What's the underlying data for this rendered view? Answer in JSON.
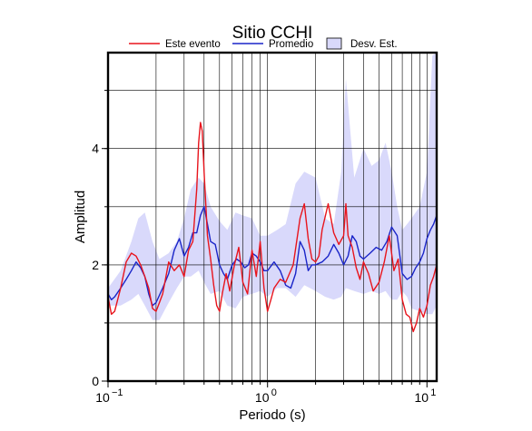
{
  "chart_data": {
    "type": "line",
    "title": "Sitio CCHI",
    "xlabel": "Periodo (s)",
    "ylabel": "Amplitud",
    "xscale": "log",
    "xlim": [
      0.1,
      11.5
    ],
    "ylim": [
      0,
      5.65
    ],
    "xticks": [
      {
        "value": 0.1,
        "base": "10",
        "exp": "−1"
      },
      {
        "value": 1,
        "base": "10",
        "exp": "0"
      },
      {
        "value": 10,
        "base": "10",
        "exp": "1"
      }
    ],
    "yticks": [
      0,
      2,
      4
    ],
    "grid": true,
    "legend_position": "top",
    "legend": [
      {
        "label": "Este evento",
        "kind": "line",
        "color": "#e8141c"
      },
      {
        "label": "Promedio",
        "kind": "line",
        "color": "#1a25c8"
      },
      {
        "label": "Desv. Est.",
        "kind": "band",
        "color": "#d9d9fb"
      }
    ],
    "band": {
      "name": "Desv. Est.",
      "color": "#d9d9fb",
      "x": [
        0.1,
        0.12,
        0.14,
        0.155,
        0.17,
        0.19,
        0.21,
        0.24,
        0.27,
        0.3,
        0.33,
        0.37,
        0.4,
        0.44,
        0.5,
        0.56,
        0.63,
        0.7,
        0.8,
        0.9,
        1.0,
        1.15,
        1.3,
        1.5,
        1.7,
        2.0,
        2.3,
        2.6,
        2.9,
        3.1,
        3.5,
        4.0,
        4.5,
        5.0,
        5.5,
        6.0,
        6.5,
        7.0,
        7.5,
        8.0,
        9.0,
        10.0,
        10.8,
        11.5
      ],
      "upper": [
        1.6,
        1.9,
        2.4,
        2.8,
        2.9,
        2.4,
        2.1,
        2.2,
        2.4,
        2.8,
        3.3,
        3.5,
        3.4,
        3.0,
        2.75,
        2.6,
        2.9,
        2.85,
        2.8,
        2.5,
        2.5,
        2.6,
        2.7,
        3.4,
        3.6,
        3.5,
        2.8,
        2.7,
        3.6,
        5.2,
        3.5,
        4.0,
        3.7,
        3.8,
        4.1,
        3.6,
        3.0,
        2.6,
        2.7,
        2.8,
        3.0,
        3.6,
        5.6,
        5.65
      ],
      "lower": [
        1.3,
        1.3,
        1.4,
        1.5,
        1.3,
        1.05,
        1.05,
        1.35,
        1.6,
        1.8,
        1.8,
        1.9,
        1.7,
        1.5,
        1.55,
        1.3,
        1.25,
        1.45,
        1.5,
        1.55,
        1.45,
        1.6,
        1.6,
        1.45,
        1.65,
        1.55,
        1.45,
        1.4,
        1.45,
        1.6,
        1.55,
        1.5,
        1.55,
        1.5,
        1.55,
        1.4,
        1.4,
        1.55,
        1.45,
        1.25,
        1.2,
        1.15,
        1.15,
        1.3
      ]
    },
    "series": [
      {
        "name": "Este evento",
        "color": "#e8141c",
        "x": [
          0.1,
          0.105,
          0.11,
          0.12,
          0.13,
          0.14,
          0.15,
          0.16,
          0.17,
          0.18,
          0.19,
          0.2,
          0.21,
          0.22,
          0.24,
          0.26,
          0.28,
          0.3,
          0.32,
          0.34,
          0.36,
          0.37,
          0.38,
          0.39,
          0.4,
          0.42,
          0.44,
          0.46,
          0.48,
          0.5,
          0.52,
          0.55,
          0.58,
          0.62,
          0.66,
          0.7,
          0.75,
          0.8,
          0.85,
          0.9,
          0.95,
          1.0,
          1.05,
          1.1,
          1.2,
          1.3,
          1.45,
          1.6,
          1.7,
          1.8,
          1.9,
          2.0,
          2.1,
          2.2,
          2.4,
          2.6,
          2.8,
          3.0,
          3.1,
          3.2,
          3.4,
          3.6,
          3.8,
          4.0,
          4.3,
          4.6,
          5.0,
          5.4,
          5.8,
          6.2,
          6.6,
          7.0,
          7.4,
          7.8,
          8.2,
          8.6,
          9.0,
          9.5,
          10.0,
          10.5,
          11.0,
          11.5
        ],
        "y": [
          1.45,
          1.15,
          1.2,
          1.6,
          2.05,
          2.2,
          2.15,
          2.0,
          1.8,
          1.6,
          1.25,
          1.2,
          1.35,
          1.5,
          2.05,
          1.9,
          2.0,
          1.8,
          2.25,
          2.4,
          3.3,
          4.1,
          4.45,
          4.3,
          3.6,
          2.5,
          2.1,
          1.65,
          1.3,
          1.2,
          1.5,
          1.85,
          1.55,
          2.0,
          2.3,
          1.7,
          1.5,
          2.25,
          1.8,
          2.4,
          1.6,
          1.2,
          1.4,
          1.6,
          1.75,
          1.7,
          2.0,
          2.8,
          3.05,
          2.45,
          2.1,
          2.05,
          2.15,
          2.6,
          3.05,
          2.55,
          2.35,
          2.5,
          3.05,
          2.5,
          2.3,
          1.95,
          1.75,
          2.05,
          1.85,
          1.55,
          1.7,
          2.05,
          2.5,
          1.9,
          2.1,
          1.4,
          1.15,
          1.1,
          0.85,
          1.0,
          1.25,
          1.1,
          1.3,
          1.65,
          1.8,
          2.0
        ]
      },
      {
        "name": "Promedio",
        "color": "#1a25c8",
        "x": [
          0.1,
          0.105,
          0.11,
          0.12,
          0.13,
          0.14,
          0.15,
          0.16,
          0.17,
          0.18,
          0.19,
          0.2,
          0.22,
          0.24,
          0.26,
          0.28,
          0.3,
          0.32,
          0.34,
          0.36,
          0.38,
          0.4,
          0.42,
          0.44,
          0.47,
          0.5,
          0.53,
          0.56,
          0.6,
          0.64,
          0.68,
          0.72,
          0.76,
          0.8,
          0.85,
          0.9,
          0.95,
          1.0,
          1.1,
          1.2,
          1.3,
          1.4,
          1.5,
          1.6,
          1.7,
          1.8,
          1.9,
          2.0,
          2.2,
          2.4,
          2.6,
          2.8,
          3.0,
          3.2,
          3.4,
          3.6,
          3.8,
          4.0,
          4.4,
          4.8,
          5.2,
          5.6,
          6.0,
          6.5,
          7.0,
          7.5,
          8.0,
          8.5,
          9.0,
          9.5,
          10.0,
          10.5,
          11.0,
          11.5
        ],
        "y": [
          1.5,
          1.4,
          1.45,
          1.6,
          1.75,
          1.9,
          2.05,
          1.95,
          1.8,
          1.5,
          1.3,
          1.35,
          1.6,
          1.85,
          2.25,
          2.45,
          2.15,
          2.3,
          2.55,
          2.55,
          2.85,
          3.0,
          2.7,
          2.4,
          2.35,
          2.0,
          1.85,
          1.75,
          2.0,
          2.1,
          2.05,
          1.95,
          2.0,
          2.2,
          2.15,
          2.05,
          1.9,
          1.9,
          2.05,
          1.9,
          1.65,
          1.6,
          1.85,
          2.4,
          2.25,
          1.9,
          2.0,
          2.0,
          2.05,
          2.15,
          2.35,
          2.2,
          2.0,
          2.15,
          2.5,
          2.4,
          2.15,
          2.1,
          2.2,
          2.3,
          2.25,
          2.4,
          2.65,
          2.5,
          1.85,
          1.75,
          1.8,
          1.95,
          2.05,
          2.2,
          2.45,
          2.6,
          2.7,
          2.85
        ]
      }
    ]
  }
}
